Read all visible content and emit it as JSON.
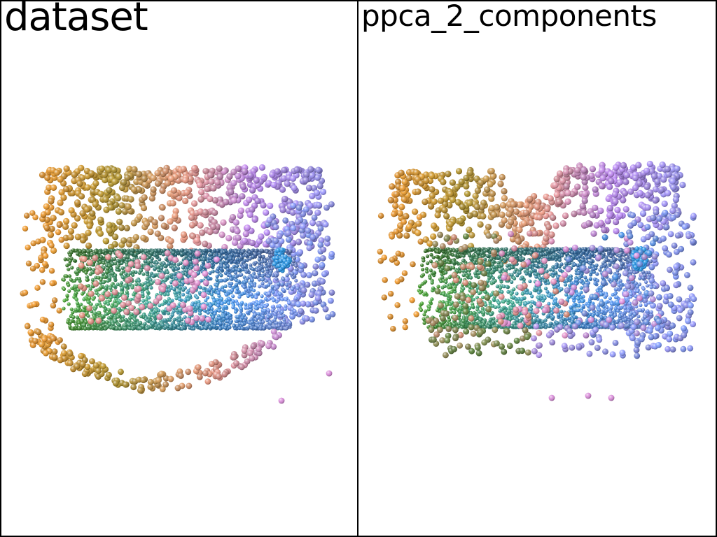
{
  "window": {
    "panels": [
      {
        "title": "dataset"
      },
      {
        "title": "ppca_2_components"
      }
    ]
  },
  "scene": {
    "background": "#ffffff",
    "border_color": "#000000",
    "palette": {
      "orange": "#e08a1e",
      "olive": "#a88a1e",
      "salmon": "#e08a72",
      "pink": "#d987d9",
      "violet": "#b07ae6",
      "lavender": "#8a86e8",
      "periwinkle": "#6e8cf0",
      "green": "#3c9a22",
      "teal": "#2e9e86",
      "blue": "#2f86e0",
      "bright_blue": "#1b90e6",
      "dark_green": "#4e7a2e"
    }
  }
}
